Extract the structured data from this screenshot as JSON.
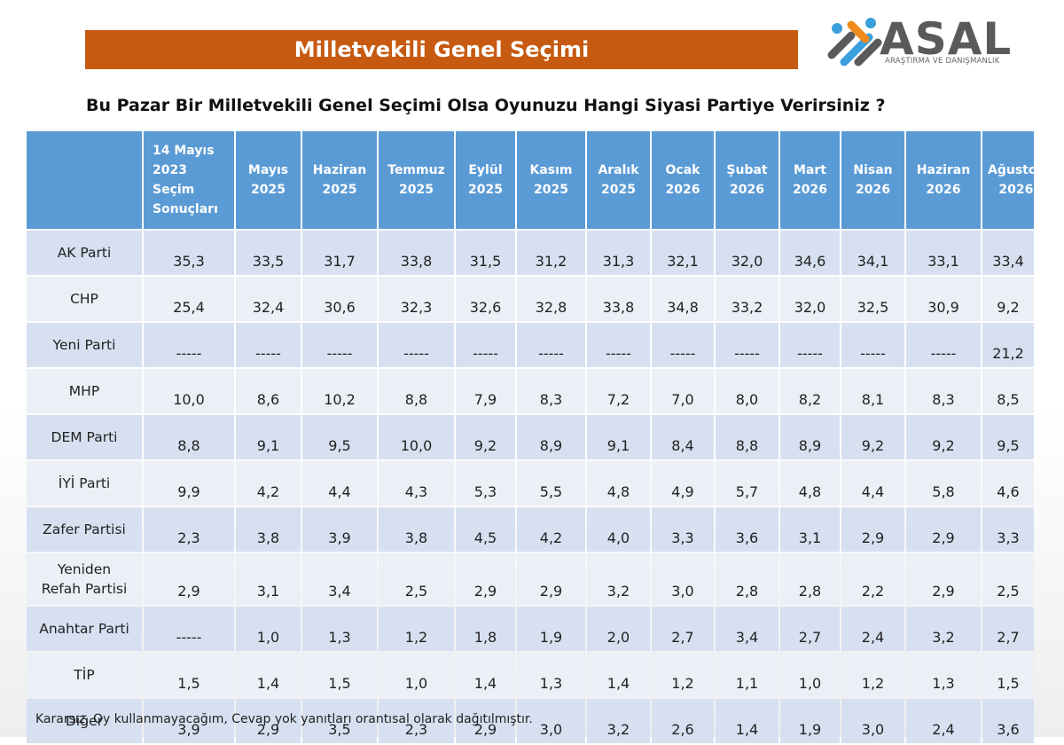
{
  "banner": {
    "title": "Milletvekili Genel Seçimi"
  },
  "logo": {
    "name": "ASAL",
    "subtitle": "ARAŞTIRMA VE DANIŞMANLIK"
  },
  "question": "Bu Pazar Bir Milletvekili Genel Seçimi Olsa Oyunuzu Hangi Siyasi Partiye Verirsiniz ?",
  "colors": {
    "banner": "#c65a11",
    "header": "#5b9bd5",
    "row_odd": "#d6e0f0",
    "row_even": "#ebeff6",
    "logo_blue": "#3aa0dc",
    "logo_orange": "#f08a1c"
  },
  "table": {
    "columns": [
      [
        "14 Mayıs",
        "2023",
        "Seçim",
        "Sonuçları"
      ],
      [
        "Mayıs",
        "2025"
      ],
      [
        "Haziran",
        "2025"
      ],
      [
        "Temmuz",
        "2025"
      ],
      [
        "Eylül",
        "2025"
      ],
      [
        "Kasım",
        "2025"
      ],
      [
        "Aralık",
        "2025"
      ],
      [
        "Ocak",
        "2026"
      ],
      [
        "Şubat",
        "2026"
      ],
      [
        "Mart",
        "2026"
      ],
      [
        "Nisan",
        "2026"
      ],
      [
        "Haziran",
        "2026"
      ],
      [
        "Ağustos",
        "2026"
      ]
    ],
    "rows": [
      {
        "party": [
          "AK Parti"
        ],
        "values": [
          "35,3",
          "33,5",
          "31,7",
          "33,8",
          "31,5",
          "31,2",
          "31,3",
          "32,1",
          "32,0",
          "34,6",
          "34,1",
          "33,1",
          "33,4"
        ]
      },
      {
        "party": [
          "CHP"
        ],
        "values": [
          "25,4",
          "32,4",
          "30,6",
          "32,3",
          "32,6",
          "32,8",
          "33,8",
          "34,8",
          "33,2",
          "32,0",
          "32,5",
          "30,9",
          "9,2"
        ]
      },
      {
        "party": [
          "Yeni Parti"
        ],
        "values": [
          "-----",
          "-----",
          "-----",
          "-----",
          "-----",
          "-----",
          "-----",
          "-----",
          "-----",
          "-----",
          "-----",
          "-----",
          "21,2"
        ]
      },
      {
        "party": [
          "MHP"
        ],
        "values": [
          "10,0",
          "8,6",
          "10,2",
          "8,8",
          "7,9",
          "8,3",
          "7,2",
          "7,0",
          "8,0",
          "8,2",
          "8,1",
          "8,3",
          "8,5"
        ]
      },
      {
        "party": [
          "DEM Parti"
        ],
        "values": [
          "8,8",
          "9,1",
          "9,5",
          "10,0",
          "9,2",
          "8,9",
          "9,1",
          "8,4",
          "8,8",
          "8,9",
          "9,2",
          "9,2",
          "9,5"
        ]
      },
      {
        "party": [
          "İYİ Parti"
        ],
        "values": [
          "9,9",
          "4,2",
          "4,4",
          "4,3",
          "5,3",
          "5,5",
          "4,8",
          "4,9",
          "5,7",
          "4,8",
          "4,4",
          "5,8",
          "4,6"
        ]
      },
      {
        "party": [
          "Zafer Partisi"
        ],
        "values": [
          "2,3",
          "3,8",
          "3,9",
          "3,8",
          "4,5",
          "4,2",
          "4,0",
          "3,3",
          "3,6",
          "3,1",
          "2,9",
          "2,9",
          "3,3"
        ]
      },
      {
        "party": [
          "Yeniden",
          "Refah Partisi"
        ],
        "values": [
          "2,9",
          "3,1",
          "3,4",
          "2,5",
          "2,9",
          "2,9",
          "3,2",
          "3,0",
          "2,8",
          "2,8",
          "2,2",
          "2,9",
          "2,5"
        ]
      },
      {
        "party": [
          "Anahtar Parti"
        ],
        "values": [
          "-----",
          "1,0",
          "1,3",
          "1,2",
          "1,8",
          "1,9",
          "2,0",
          "2,7",
          "3,4",
          "2,7",
          "2,4",
          "3,2",
          "2,7"
        ]
      },
      {
        "party": [
          "TİP"
        ],
        "values": [
          "1,5",
          "1,4",
          "1,5",
          "1,0",
          "1,4",
          "1,3",
          "1,4",
          "1,2",
          "1,1",
          "1,0",
          "1,2",
          "1,3",
          "1,5"
        ]
      },
      {
        "party": [
          "Diğer"
        ],
        "values": [
          "3,9",
          "2,9",
          "3,5",
          "2,3",
          "2,9",
          "3,0",
          "3,2",
          "2,6",
          "1,4",
          "1,9",
          "3,0",
          "2,4",
          "3,6"
        ]
      }
    ]
  },
  "footnote": "Kararsız, Oy kullanmayacağım, Cevap yok yanıtları orantısal olarak dağıtılmıştır."
}
